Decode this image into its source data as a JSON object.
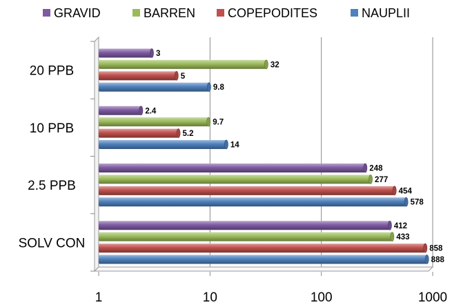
{
  "chart_data": {
    "type": "bar",
    "orientation": "horizontal",
    "x_scale": "log",
    "xlim": [
      1,
      1000
    ],
    "x_ticks": [
      "1",
      "10",
      "100",
      "1000"
    ],
    "grid": true,
    "legend_position": "top",
    "categories": [
      "SOLV CON",
      "2.5 PPB",
      "10 PPB",
      "20 PPB"
    ],
    "series": [
      {
        "name": "GRAVID",
        "color": "#7E5AA2",
        "values": [
          412,
          248,
          2.4,
          3
        ],
        "labels": [
          "412",
          "248",
          "2.4",
          "3"
        ]
      },
      {
        "name": "BARREN",
        "color": "#9BBB59",
        "values": [
          433,
          277,
          9.7,
          32
        ],
        "labels": [
          "433",
          "277",
          "9.7",
          "32"
        ]
      },
      {
        "name": "COPEPODITES",
        "color": "#C0504D",
        "values": [
          858,
          454,
          5.2,
          5
        ],
        "labels": [
          "858",
          "454",
          "5.2",
          "5"
        ]
      },
      {
        "name": "NAUPLII",
        "color": "#4F81BD",
        "values": [
          888,
          578,
          14,
          9.8
        ],
        "labels": [
          "888",
          "578",
          "14",
          "9.8"
        ]
      }
    ]
  }
}
